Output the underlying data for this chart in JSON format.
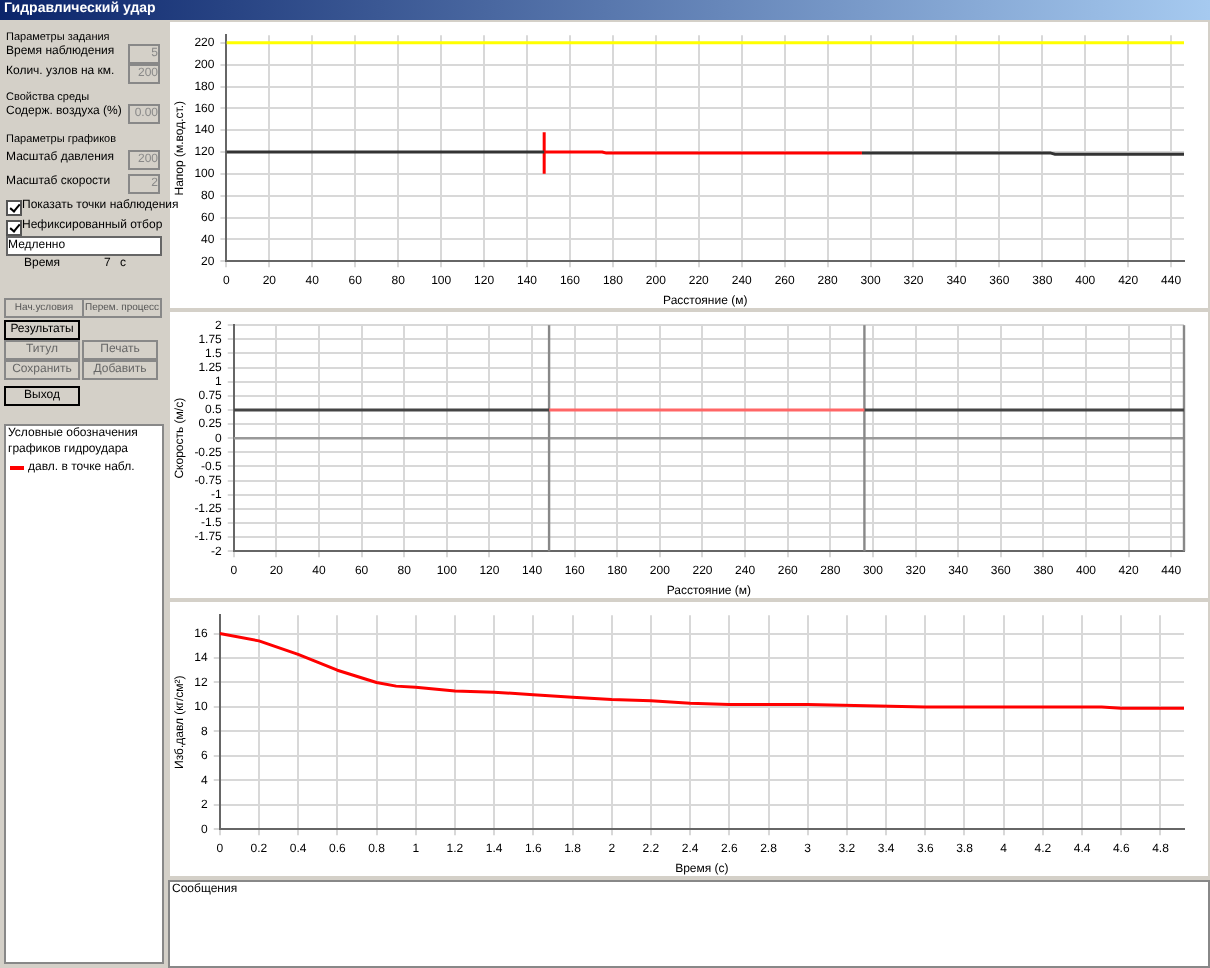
{
  "chart_data": [
    {
      "type": "other",
      "title": "Гидравлический удар",
      "annotations": [
        "Параметры задания",
        "Время наблюдения",
        "5",
        "Колич. узлов на км.",
        "200",
        "Свойства среды",
        "Содерж. воздуха (%)",
        "0.00",
        "Параметры графиков",
        "Масштаб давления",
        "200",
        "Масштаб скорости",
        "2",
        "Показать точки наблюдения",
        "Нефиксированный отбор",
        "Медленно",
        "Время",
        "7",
        "с",
        "Нач.условия",
        "Перем. процесс",
        "Результаты",
        "Титул",
        "Печать",
        "Сохранить",
        "Добавить",
        "Выход",
        "Условные обозначения графиков гидроудара",
        "давл. в точке набл.",
        "Сообщения"
      ]
    },
    {
      "type": "line",
      "xlabel": "Расстояние (м)",
      "ylabel": "Напор (м.вод.ст.)",
      "xlim": [
        0,
        446
      ],
      "ylim": [
        20,
        227
      ],
      "xticks": [
        0,
        20,
        40,
        60,
        80,
        100,
        120,
        140,
        160,
        180,
        200,
        220,
        240,
        260,
        280,
        300,
        320,
        340,
        360,
        380,
        400,
        420,
        440
      ],
      "yticks": [
        20,
        40,
        60,
        80,
        100,
        120,
        140,
        160,
        180,
        200,
        220
      ],
      "grid": true,
      "legend": false,
      "marker": "none",
      "line_style": "solid",
      "series": [
        {
          "color": "#ffff00",
          "x": [
            0,
            446
          ],
          "values": [
            220,
            220
          ]
        },
        {
          "color": "#333333",
          "x": [
            0,
            148
          ],
          "values": [
            120,
            120
          ]
        },
        {
          "color": "#333333",
          "x": [
            296,
            384,
            386,
            446
          ],
          "values": [
            119,
            119,
            118,
            118
          ]
        },
        {
          "color": "#ff0000",
          "x": [
            148,
            175,
            177,
            296
          ],
          "values": [
            120,
            120,
            119,
            119
          ]
        },
        {
          "color": "#ff0000",
          "x": [
            148,
            148
          ],
          "values": [
            100,
            138
          ]
        }
      ]
    },
    {
      "type": "line",
      "xlabel": "Расстояние (м)",
      "ylabel": "Скорость (м/с)",
      "xlim": [
        0,
        446
      ],
      "ylim": [
        -2,
        2
      ],
      "xticks": [
        0,
        20,
        40,
        60,
        80,
        100,
        120,
        140,
        160,
        180,
        200,
        220,
        240,
        260,
        280,
        300,
        320,
        340,
        360,
        380,
        400,
        420,
        440
      ],
      "yticks": [
        -2,
        -1.75,
        -1.5,
        -1.25,
        -1,
        -0.75,
        -0.5,
        -0.25,
        0,
        0.25,
        0.5,
        0.75,
        1,
        1.25,
        1.5,
        1.75,
        2
      ],
      "grid": true,
      "legend": false,
      "marker": "none",
      "line_style": "solid",
      "ref_lines": [
        {
          "axis": "y",
          "value": 0,
          "color": "#999999"
        },
        {
          "axis": "x",
          "value": 148,
          "color": "#888888"
        },
        {
          "axis": "x",
          "value": 296,
          "color": "#888888"
        },
        {
          "axis": "x",
          "value": 446,
          "color": "#888888"
        }
      ],
      "series": [
        {
          "color": "#444444",
          "x": [
            0,
            148
          ],
          "values": [
            0.5,
            0.5
          ]
        },
        {
          "color": "#ff6666",
          "x": [
            148,
            296
          ],
          "values": [
            0.5,
            0.5
          ]
        },
        {
          "color": "#444444",
          "x": [
            296,
            446
          ],
          "values": [
            0.5,
            0.5
          ]
        }
      ]
    },
    {
      "type": "line",
      "xlabel": "Время (с)",
      "ylabel": "Изб.давл (кг/см²)",
      "xlim": [
        0,
        4.92
      ],
      "ylim": [
        0,
        17.5
      ],
      "xticks": [
        0,
        0.2,
        0.4,
        0.6,
        0.8,
        1,
        1.2,
        1.4,
        1.6,
        1.8,
        2,
        2.2,
        2.4,
        2.6,
        2.8,
        3,
        3.2,
        3.4,
        3.6,
        3.8,
        4,
        4.2,
        4.4,
        4.6,
        4.8
      ],
      "yticks": [
        0,
        2,
        4,
        6,
        8,
        10,
        12,
        14,
        16
      ],
      "grid": true,
      "legend": false,
      "marker": "none",
      "line_style": "solid",
      "series": [
        {
          "color": "#ff0000",
          "x": [
            0,
            0.2,
            0.4,
            0.6,
            0.8,
            0.9,
            1,
            1.2,
            1.4,
            1.6,
            1.8,
            2,
            2.2,
            2.4,
            2.6,
            3,
            3.3,
            3.6,
            4,
            4.5,
            4.6,
            4.92
          ],
          "values": [
            16,
            15.4,
            14.3,
            13,
            12,
            11.7,
            11.6,
            11.3,
            11.2,
            11,
            10.8,
            10.6,
            10.5,
            10.3,
            10.2,
            10.2,
            10.1,
            10,
            10,
            10,
            9.9,
            9.9
          ]
        }
      ]
    }
  ]
}
